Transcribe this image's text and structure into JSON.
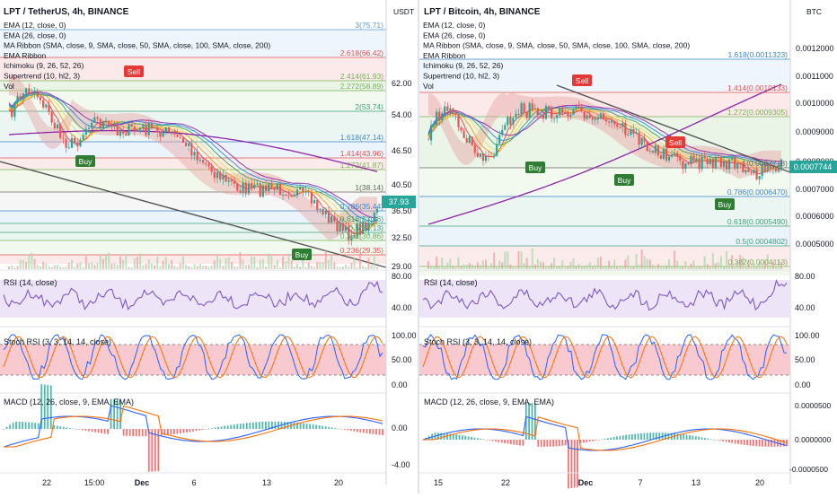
{
  "left": {
    "title": "LPT / TetherUS, 4h, BINANCE",
    "currency": "USDT",
    "indicators": [
      "EMA (12, close, 0)",
      "EMA (26, close, 0)",
      "MA Ribbon (SMA, close, 9, SMA, close, 50, SMA, close, 100, SMA, close, 200)",
      "EMA Ribbon",
      "Ichimoku (9, 26, 52, 26)",
      "Supertrend (10, hl2, 3)",
      "Vol"
    ],
    "price_ticks": [
      "62.00",
      "54.00",
      "46.50",
      "40.50",
      "36.50",
      "32.50",
      "29.00"
    ],
    "last_price": "37.93",
    "fib": [
      {
        "label": "3(75.71)",
        "color": "#5b9bd5"
      },
      {
        "label": "2.618(66.42)",
        "color": "#e0534f"
      },
      {
        "label": "2.414(61.93)",
        "color": "#77b255"
      },
      {
        "label": "2.272(58.89)",
        "color": "#77b255"
      },
      {
        "label": "2(53.74)",
        "color": "#3f9e7d"
      },
      {
        "label": "1.618(47.14)",
        "color": "#3d86c6"
      },
      {
        "label": "1.414(43.96)",
        "color": "#e0534f"
      },
      {
        "label": "1.272(41.87)",
        "color": "#77b255"
      },
      {
        "label": "1(38.14)",
        "color": "#666666"
      },
      {
        "label": "0.786(35.44)",
        "color": "#3d86c6"
      },
      {
        "label": "0.618(33.46)",
        "color": "#3f9e7d"
      },
      {
        "label": "0.5(32.13)",
        "color": "#3f9e7d"
      },
      {
        "label": "0.382(30.86)",
        "color": "#77b255"
      },
      {
        "label": "0.236(29.35)",
        "color": "#e0534f"
      }
    ],
    "signals": [
      "Sell",
      "Buy",
      "Buy"
    ],
    "rsi_label": "RSI (14, close)",
    "rsi_ticks": [
      "80.00",
      "40.00"
    ],
    "stoch_label": "Stoch RSI (3, 3, 14, 14, close)",
    "stoch_ticks": [
      "100.00",
      "50.00",
      "0.00"
    ],
    "macd_label": "MACD (12, 26, close, 9, EMA, EMA)",
    "macd_ticks": [
      "0.00",
      "-4.00"
    ],
    "time_labels": [
      "22",
      "15:00",
      "Dec",
      "6",
      "13",
      "20"
    ]
  },
  "right": {
    "title": "LPT / Bitcoin, 4h, BINANCE",
    "currency": "BTC",
    "indicators": [
      "EMA (12, close, 0)",
      "EMA (26, close, 0)",
      "MA Ribbon (SMA, close, 9, SMA, close, 50, SMA, close, 100, SMA, close, 200)",
      "EMA Ribbon",
      "Ichimoku (9, 26, 52, 26)",
      "Supertrend (10, hl2, 3)",
      "Vol"
    ],
    "price_ticks": [
      "0.0012000",
      "0.0011000",
      "0.0010000",
      "0.0009000",
      "0.0008000",
      "0.0007000",
      "0.0006000",
      "0.0005000"
    ],
    "last_price": "0.0007744",
    "fib": [
      {
        "label": "1.618(0.0011323)",
        "color": "#3d86c6"
      },
      {
        "label": "1.414(0.0010133)",
        "color": "#e0534f"
      },
      {
        "label": "1.272(0.0009305)",
        "color": "#77b255"
      },
      {
        "label": "1(0.0007718)",
        "color": "#666666"
      },
      {
        "label": "0.786(0.0006470)",
        "color": "#3d86c6"
      },
      {
        "label": "0.618(0.0005490)",
        "color": "#3f9e7d"
      },
      {
        "label": "0.5(0.0004802)",
        "color": "#3f9e7d"
      },
      {
        "label": "0.382(0.0004113)",
        "color": "#77b255"
      }
    ],
    "signals": [
      "Sell",
      "Sell",
      "Buy",
      "Buy",
      "Buy"
    ],
    "rsi_label": "RSI (14, close)",
    "rsi_ticks": [
      "80.00",
      "40.00"
    ],
    "stoch_label": "Stoch RSI (3, 3, 14, 14, close)",
    "stoch_ticks": [
      "100.00",
      "50.00",
      "0.00"
    ],
    "macd_label": "MACD (12, 26, close, 9, EMA, EMA)",
    "macd_ticks": [
      "0.0000500",
      "0.0000000",
      "-0.0000500"
    ],
    "time_labels": [
      "15",
      "22",
      "Dec",
      "7",
      "13",
      "20"
    ]
  },
  "colors": {
    "up": "#26a69a",
    "down": "#ef5350",
    "rsi": "#7e57c2",
    "ema12": "#2962ff",
    "ema26": "#ff6d00",
    "fib_band": "#fce7e7"
  }
}
